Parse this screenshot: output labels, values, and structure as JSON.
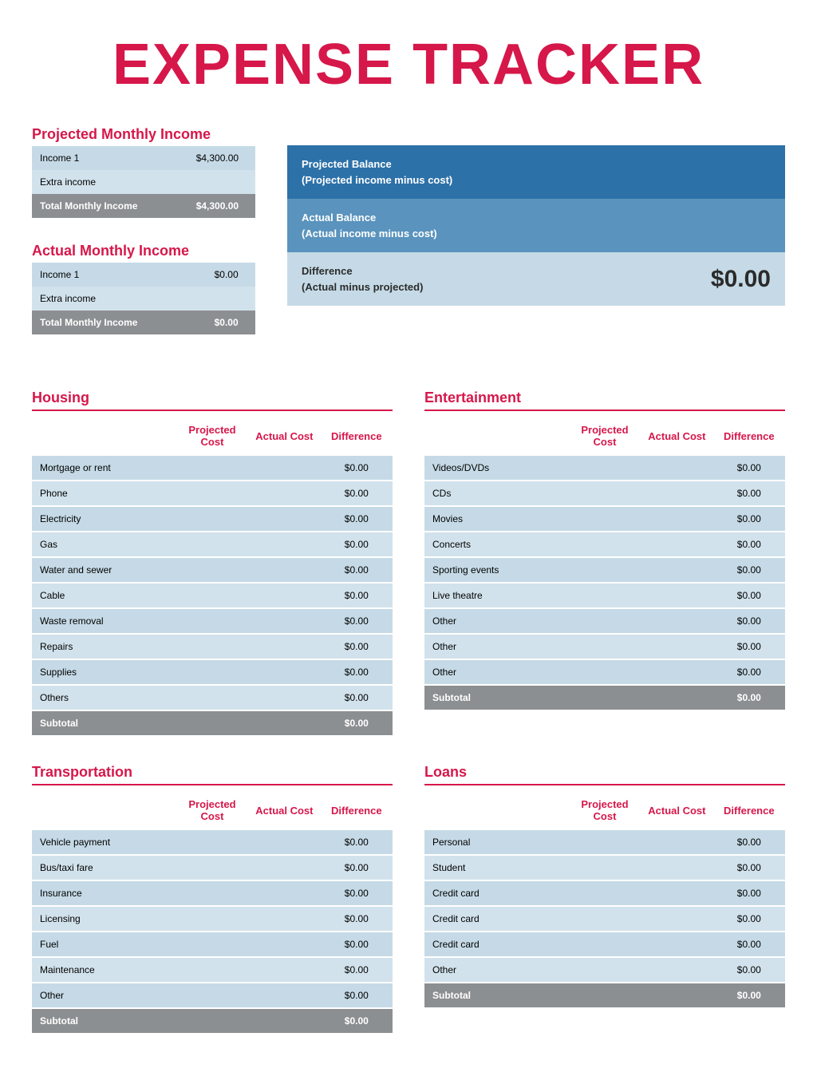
{
  "colors": {
    "accent": "#d6174a",
    "row_light": "#c5dae6",
    "row_alt": "#d1e2ec",
    "row_total": "#8c8f91",
    "balance1": "#2c71a8",
    "balance2": "#5a93bd",
    "balance3": "#c5dae6",
    "text_dark": "#2b2b2b"
  },
  "title": "EXPENSE TRACKER",
  "projected_income": {
    "heading": "Projected Monthly Income",
    "rows": [
      {
        "label": "Income 1",
        "value": "$4,300.00"
      },
      {
        "label": "Extra income",
        "value": ""
      }
    ],
    "total_label": "Total Monthly Income",
    "total_value": "$4,300.00"
  },
  "actual_income": {
    "heading": "Actual Monthly Income",
    "rows": [
      {
        "label": "Income 1",
        "value": "$0.00"
      },
      {
        "label": "Extra income",
        "value": ""
      }
    ],
    "total_label": "Total Monthly Income",
    "total_value": "$0.00"
  },
  "balance": {
    "proj_label": "Projected Balance",
    "proj_sub": "(Projected income minus cost)",
    "actual_label": "Actual Balance",
    "actual_sub": "(Actual income minus cost)",
    "diff_label": "Difference",
    "diff_sub": "(Actual minus projected)",
    "diff_value": "$0.00"
  },
  "columns": {
    "proj": "Projected Cost",
    "actual": "Actual Cost",
    "diff": "Difference"
  },
  "subtotal_label": "Subtotal",
  "categories": [
    {
      "heading": "Housing",
      "items": [
        {
          "label": "Mortgage or rent",
          "diff": "$0.00"
        },
        {
          "label": "Phone",
          "diff": "$0.00"
        },
        {
          "label": "Electricity",
          "diff": "$0.00"
        },
        {
          "label": "Gas",
          "diff": "$0.00"
        },
        {
          "label": "Water and sewer",
          "diff": "$0.00"
        },
        {
          "label": "Cable",
          "diff": "$0.00"
        },
        {
          "label": "Waste removal",
          "diff": "$0.00"
        },
        {
          "label": "Repairs",
          "diff": "$0.00"
        },
        {
          "label": "Supplies",
          "diff": "$0.00"
        },
        {
          "label": "Others",
          "diff": "$0.00"
        }
      ],
      "subtotal": "$0.00"
    },
    {
      "heading": "Entertainment",
      "items": [
        {
          "label": "Videos/DVDs",
          "diff": "$0.00"
        },
        {
          "label": "CDs",
          "diff": "$0.00"
        },
        {
          "label": "Movies",
          "diff": "$0.00"
        },
        {
          "label": "Concerts",
          "diff": "$0.00"
        },
        {
          "label": "Sporting events",
          "diff": "$0.00"
        },
        {
          "label": "Live theatre",
          "diff": "$0.00"
        },
        {
          "label": "Other",
          "diff": "$0.00"
        },
        {
          "label": "Other",
          "diff": "$0.00"
        },
        {
          "label": "Other",
          "diff": "$0.00"
        }
      ],
      "subtotal": "$0.00"
    },
    {
      "heading": "Transportation",
      "items": [
        {
          "label": "Vehicle payment",
          "diff": "$0.00"
        },
        {
          "label": "Bus/taxi fare",
          "diff": "$0.00"
        },
        {
          "label": "Insurance",
          "diff": "$0.00"
        },
        {
          "label": "Licensing",
          "diff": "$0.00"
        },
        {
          "label": "Fuel",
          "diff": "$0.00"
        },
        {
          "label": "Maintenance",
          "diff": "$0.00"
        },
        {
          "label": "Other",
          "diff": "$0.00"
        }
      ],
      "subtotal": "$0.00"
    },
    {
      "heading": "Loans",
      "items": [
        {
          "label": "Personal",
          "diff": "$0.00"
        },
        {
          "label": "Student",
          "diff": "$0.00"
        },
        {
          "label": "Credit card",
          "diff": "$0.00"
        },
        {
          "label": "Credit card",
          "diff": "$0.00"
        },
        {
          "label": "Credit card",
          "diff": "$0.00"
        },
        {
          "label": "Other",
          "diff": "$0.00"
        }
      ],
      "subtotal": "$0.00"
    }
  ]
}
